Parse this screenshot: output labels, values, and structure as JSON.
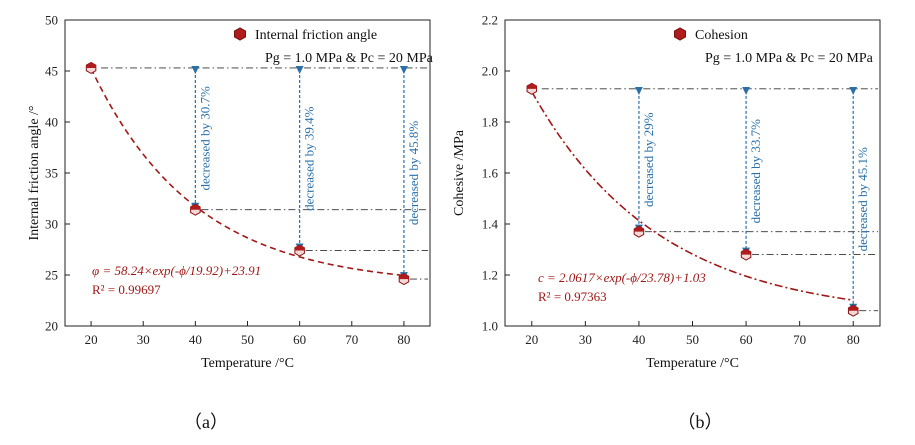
{
  "colors": {
    "marker_fill": "#b01c1c",
    "fit_line": "#a01818",
    "annotation": "#2a6fa8",
    "ref_line": "#333333"
  },
  "chart_data": [
    {
      "type": "scatter",
      "panel_label": "（a）",
      "xlabel": "Temperature /°C",
      "ylabel": "Internal friction angle /°",
      "xlim": [
        15,
        85
      ],
      "ylim": [
        20,
        50
      ],
      "xticks": [
        20,
        30,
        40,
        50,
        60,
        70,
        80
      ],
      "yticks": [
        20,
        25,
        30,
        35,
        40,
        45,
        50
      ],
      "series": [
        {
          "name": "Internal friction angle",
          "x": [
            20,
            40,
            60,
            80
          ],
          "y": [
            45.3,
            31.4,
            27.4,
            24.6
          ]
        }
      ],
      "conditions": "Pg = 1.0 MPa & Pc = 20 MPa",
      "fit": {
        "equation": "φ = 58.24×exp(-ϕ/19.92)+23.91",
        "r2": "R² = 0.99697",
        "a": 58.24,
        "t": 19.92,
        "y0": 23.91,
        "line_style": "dashed"
      },
      "annotations": [
        {
          "x": 40,
          "text": "decreased by 30.7%",
          "y_from": 45.3,
          "y_to": 31.4
        },
        {
          "x": 60,
          "text": "decreased by 39.4%",
          "y_from": 45.3,
          "y_to": 27.4
        },
        {
          "x": 80,
          "text": "decreased by 45.8%",
          "y_from": 45.3,
          "y_to": 24.6
        }
      ]
    },
    {
      "type": "scatter",
      "panel_label": "（b）",
      "xlabel": "Temperature /°C",
      "ylabel": "Cohesive /MPa",
      "xlim": [
        15,
        85
      ],
      "ylim": [
        1.0,
        2.2
      ],
      "xticks": [
        20,
        30,
        40,
        50,
        60,
        70,
        80
      ],
      "yticks": [
        1.0,
        1.2,
        1.4,
        1.6,
        1.8,
        2.0,
        2.2
      ],
      "series": [
        {
          "name": "Cohesion",
          "x": [
            20,
            40,
            60,
            80
          ],
          "y": [
            1.93,
            1.37,
            1.28,
            1.06
          ]
        }
      ],
      "conditions": "Pg = 1.0 MPa & Pc = 20 MPa",
      "fit": {
        "equation": "c = 2.0617×exp(-ϕ/23.78)+1.03",
        "r2": "R² = 0.97363",
        "a": 2.0617,
        "t": 23.78,
        "y0": 1.03,
        "line_style": "dashdot"
      },
      "annotations": [
        {
          "x": 40,
          "text": "decreased by 29%",
          "y_from": 1.93,
          "y_to": 1.37
        },
        {
          "x": 60,
          "text": "decreased by 33.7%",
          "y_from": 1.93,
          "y_to": 1.28
        },
        {
          "x": 80,
          "text": "decreased by 45.1%",
          "y_from": 1.93,
          "y_to": 1.06
        }
      ]
    }
  ]
}
